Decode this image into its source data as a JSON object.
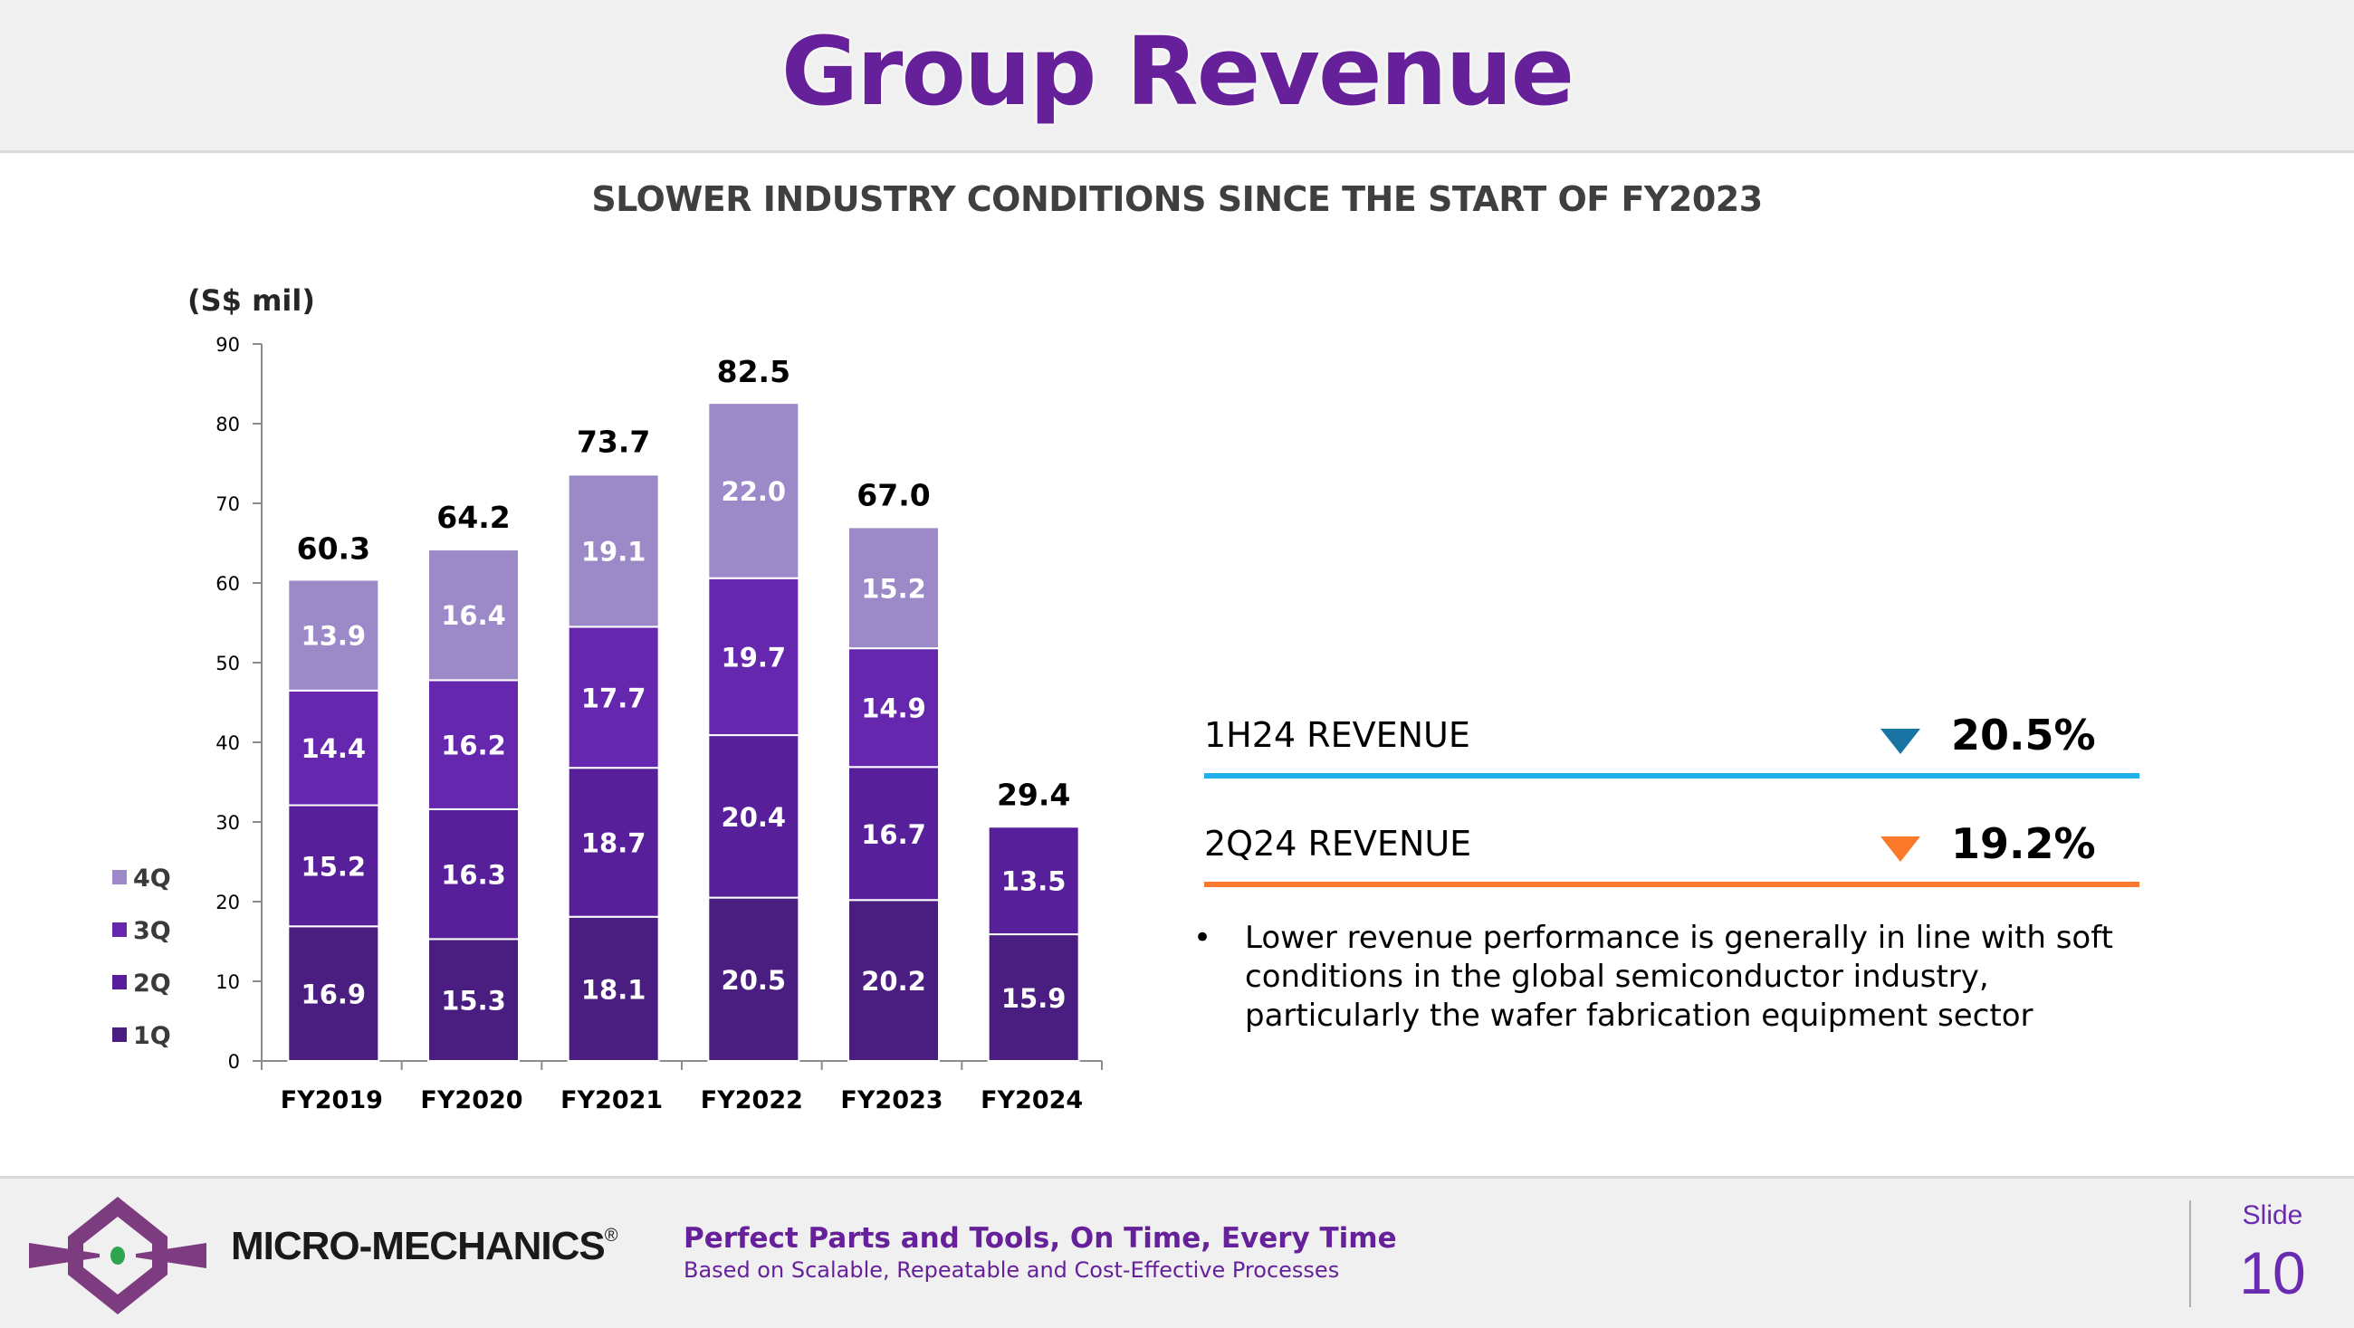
{
  "header": {
    "title": "Group Revenue",
    "subtitle": "SLOWER INDUSTRY CONDITIONS SINCE THE START OF FY2023"
  },
  "chart_data": {
    "type": "bar",
    "stacked": true,
    "ylabel": "(S$ mil)",
    "xlabel": "",
    "ylim": [
      0,
      90
    ],
    "yticks": [
      0,
      10,
      20,
      30,
      40,
      50,
      60,
      70,
      80,
      90
    ],
    "grid": false,
    "legend_position": "left",
    "categories": [
      "FY2019",
      "FY2020",
      "FY2021",
      "FY2022",
      "FY2023",
      "FY2024"
    ],
    "series": [
      {
        "name": "1Q",
        "color": "#4a1d80",
        "values": [
          16.9,
          15.3,
          18.1,
          20.5,
          20.2,
          15.9
        ]
      },
      {
        "name": "2Q",
        "color": "#57209a",
        "values": [
          15.2,
          16.3,
          18.7,
          20.4,
          16.7,
          13.5
        ]
      },
      {
        "name": "3Q",
        "color": "#6427ae",
        "values": [
          14.4,
          16.2,
          17.7,
          19.7,
          14.9,
          null
        ]
      },
      {
        "name": "4Q",
        "color": "#9b89c8",
        "values": [
          13.9,
          16.4,
          19.1,
          22.0,
          15.2,
          null
        ]
      }
    ],
    "totals": [
      60.3,
      64.2,
      73.7,
      82.5,
      67.0,
      29.4
    ],
    "legend_order": [
      "4Q",
      "3Q",
      "2Q",
      "1Q"
    ]
  },
  "kpis": [
    {
      "label": "1H24 REVENUE",
      "direction": "down",
      "value": "20.5%",
      "arrow_color": "#1a74a3",
      "line_color": "#1fb0ea"
    },
    {
      "label": "2Q24 REVENUE",
      "direction": "down",
      "value": "19.2%",
      "arrow_color": "#fb7a2a",
      "line_color": "#f97a2e"
    }
  ],
  "bullets": [
    "Lower revenue performance is generally in line with soft conditions in the global semiconductor industry, particularly the wafer fabrication equipment sector"
  ],
  "bullet_char": "•",
  "footer": {
    "brand": "MICRO-MECHANICS",
    "registered": "®",
    "tagline": "Perfect Parts and Tools, On Time, Every Time",
    "subtagline": "Based on Scalable, Repeatable and Cost-Effective Processes",
    "slide_label": "Slide",
    "slide_number": "10",
    "logo_icon": "micro-mechanics-logo-icon",
    "brand_colors": {
      "purple": "#7d3b80",
      "green": "#2ea44f"
    }
  }
}
